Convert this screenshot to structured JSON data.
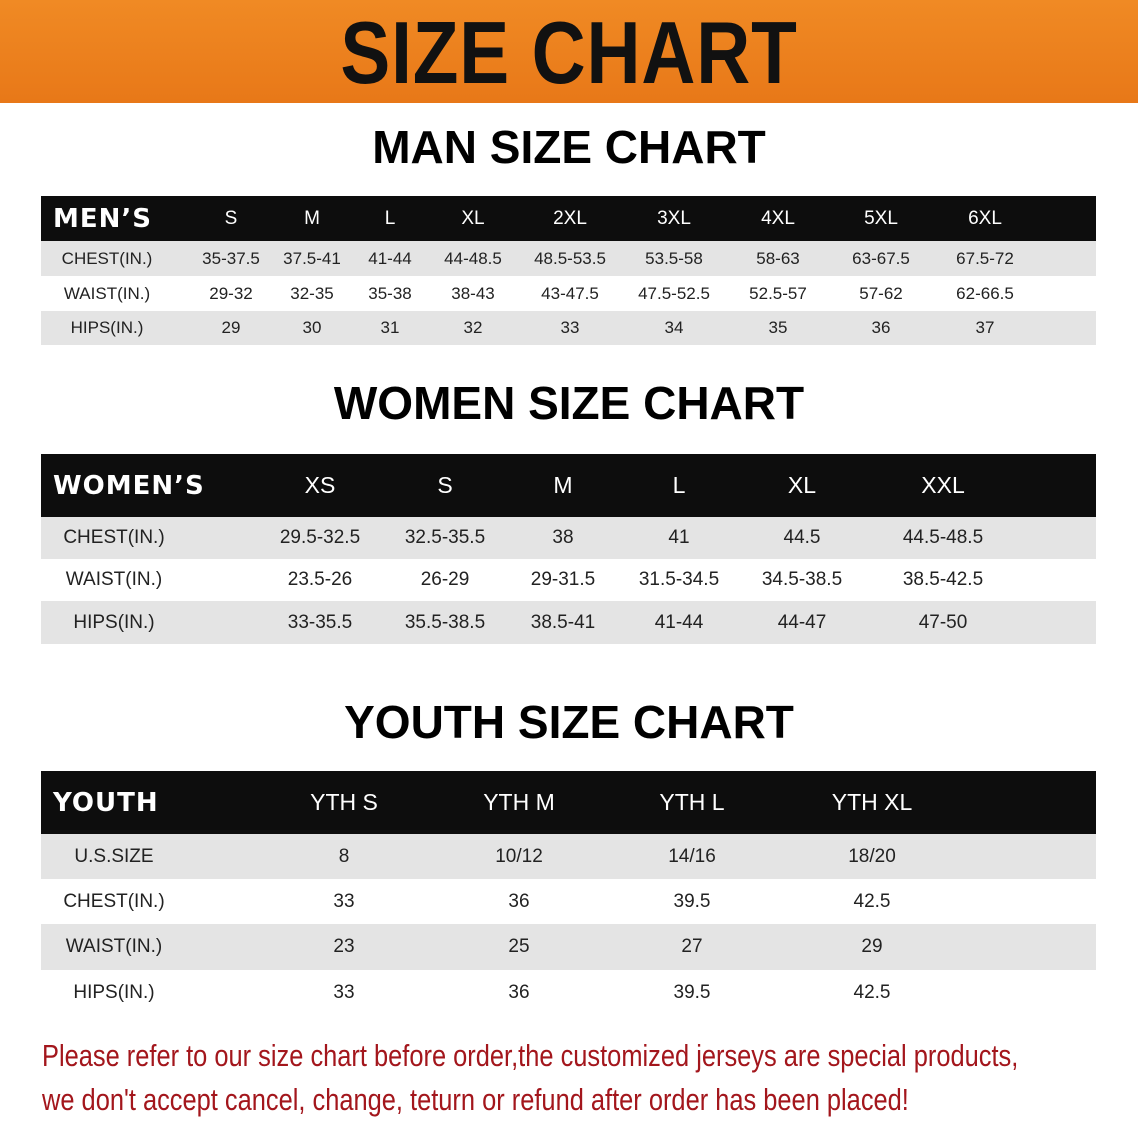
{
  "banner_title": "SIZE CHART",
  "men": {
    "title": "MAN SIZE CHART",
    "header_label": "MEN’S",
    "sizes": [
      "S",
      "M",
      "L",
      "XL",
      "2XL",
      "3XL",
      "4XL",
      "5XL",
      "6XL"
    ],
    "rows": [
      {
        "label": "CHEST(IN.)",
        "values": [
          "35-37.5",
          "37.5-41",
          "41-44",
          "44-48.5",
          "48.5-53.5",
          "53.5-58",
          "58-63",
          "63-67.5",
          "67.5-72"
        ]
      },
      {
        "label": "WAIST(IN.)",
        "values": [
          "29-32",
          "32-35",
          "35-38",
          "38-43",
          "43-47.5",
          "47.5-52.5",
          "52.5-57",
          "57-62",
          "62-66.5"
        ]
      },
      {
        "label": "HIPS(IN.)",
        "values": [
          "29",
          "30",
          "31",
          "32",
          "33",
          "34",
          "35",
          "36",
          "37"
        ]
      }
    ]
  },
  "women": {
    "title": "WOMEN SIZE CHART",
    "header_label": "WOMEN’S",
    "sizes": [
      "XS",
      "S",
      "M",
      "L",
      "XL",
      "XXL"
    ],
    "rows": [
      {
        "label": "CHEST(IN.)",
        "values": [
          "29.5-32.5",
          "32.5-35.5",
          "38",
          "41",
          "44.5",
          "44.5-48.5"
        ]
      },
      {
        "label": "WAIST(IN.)",
        "values": [
          "23.5-26",
          "26-29",
          "29-31.5",
          "31.5-34.5",
          "34.5-38.5",
          "38.5-42.5"
        ]
      },
      {
        "label": "HIPS(IN.)",
        "values": [
          "33-35.5",
          "35.5-38.5",
          "38.5-41",
          "41-44",
          "44-47",
          "47-50"
        ]
      }
    ]
  },
  "youth": {
    "title": "YOUTH SIZE CHART",
    "header_label": "YOUTH",
    "sizes": [
      "YTH S",
      "YTH M",
      "YTH L",
      "YTH XL"
    ],
    "rows": [
      {
        "label": "U.S.SIZE",
        "values": [
          "8",
          "10/12",
          "14/16",
          "18/20"
        ]
      },
      {
        "label": "CHEST(IN.)",
        "values": [
          "33",
          "36",
          "39.5",
          "42.5"
        ]
      },
      {
        "label": "WAIST(IN.)",
        "values": [
          "23",
          "25",
          "27",
          "29"
        ]
      },
      {
        "label": "HIPS(IN.)",
        "values": [
          "33",
          "36",
          "39.5",
          "42.5"
        ]
      }
    ]
  },
  "notice": {
    "line1": "Please refer to our size chart before order,the customized jerseys are special products,",
    "line2": "we don't accept cancel, change, teturn or refund after order has been placed!"
  },
  "colors": {
    "banner": "#e87818",
    "header": "#0d0d0d",
    "row_alt": "#e4e4e4",
    "notice": "#a3161c"
  }
}
